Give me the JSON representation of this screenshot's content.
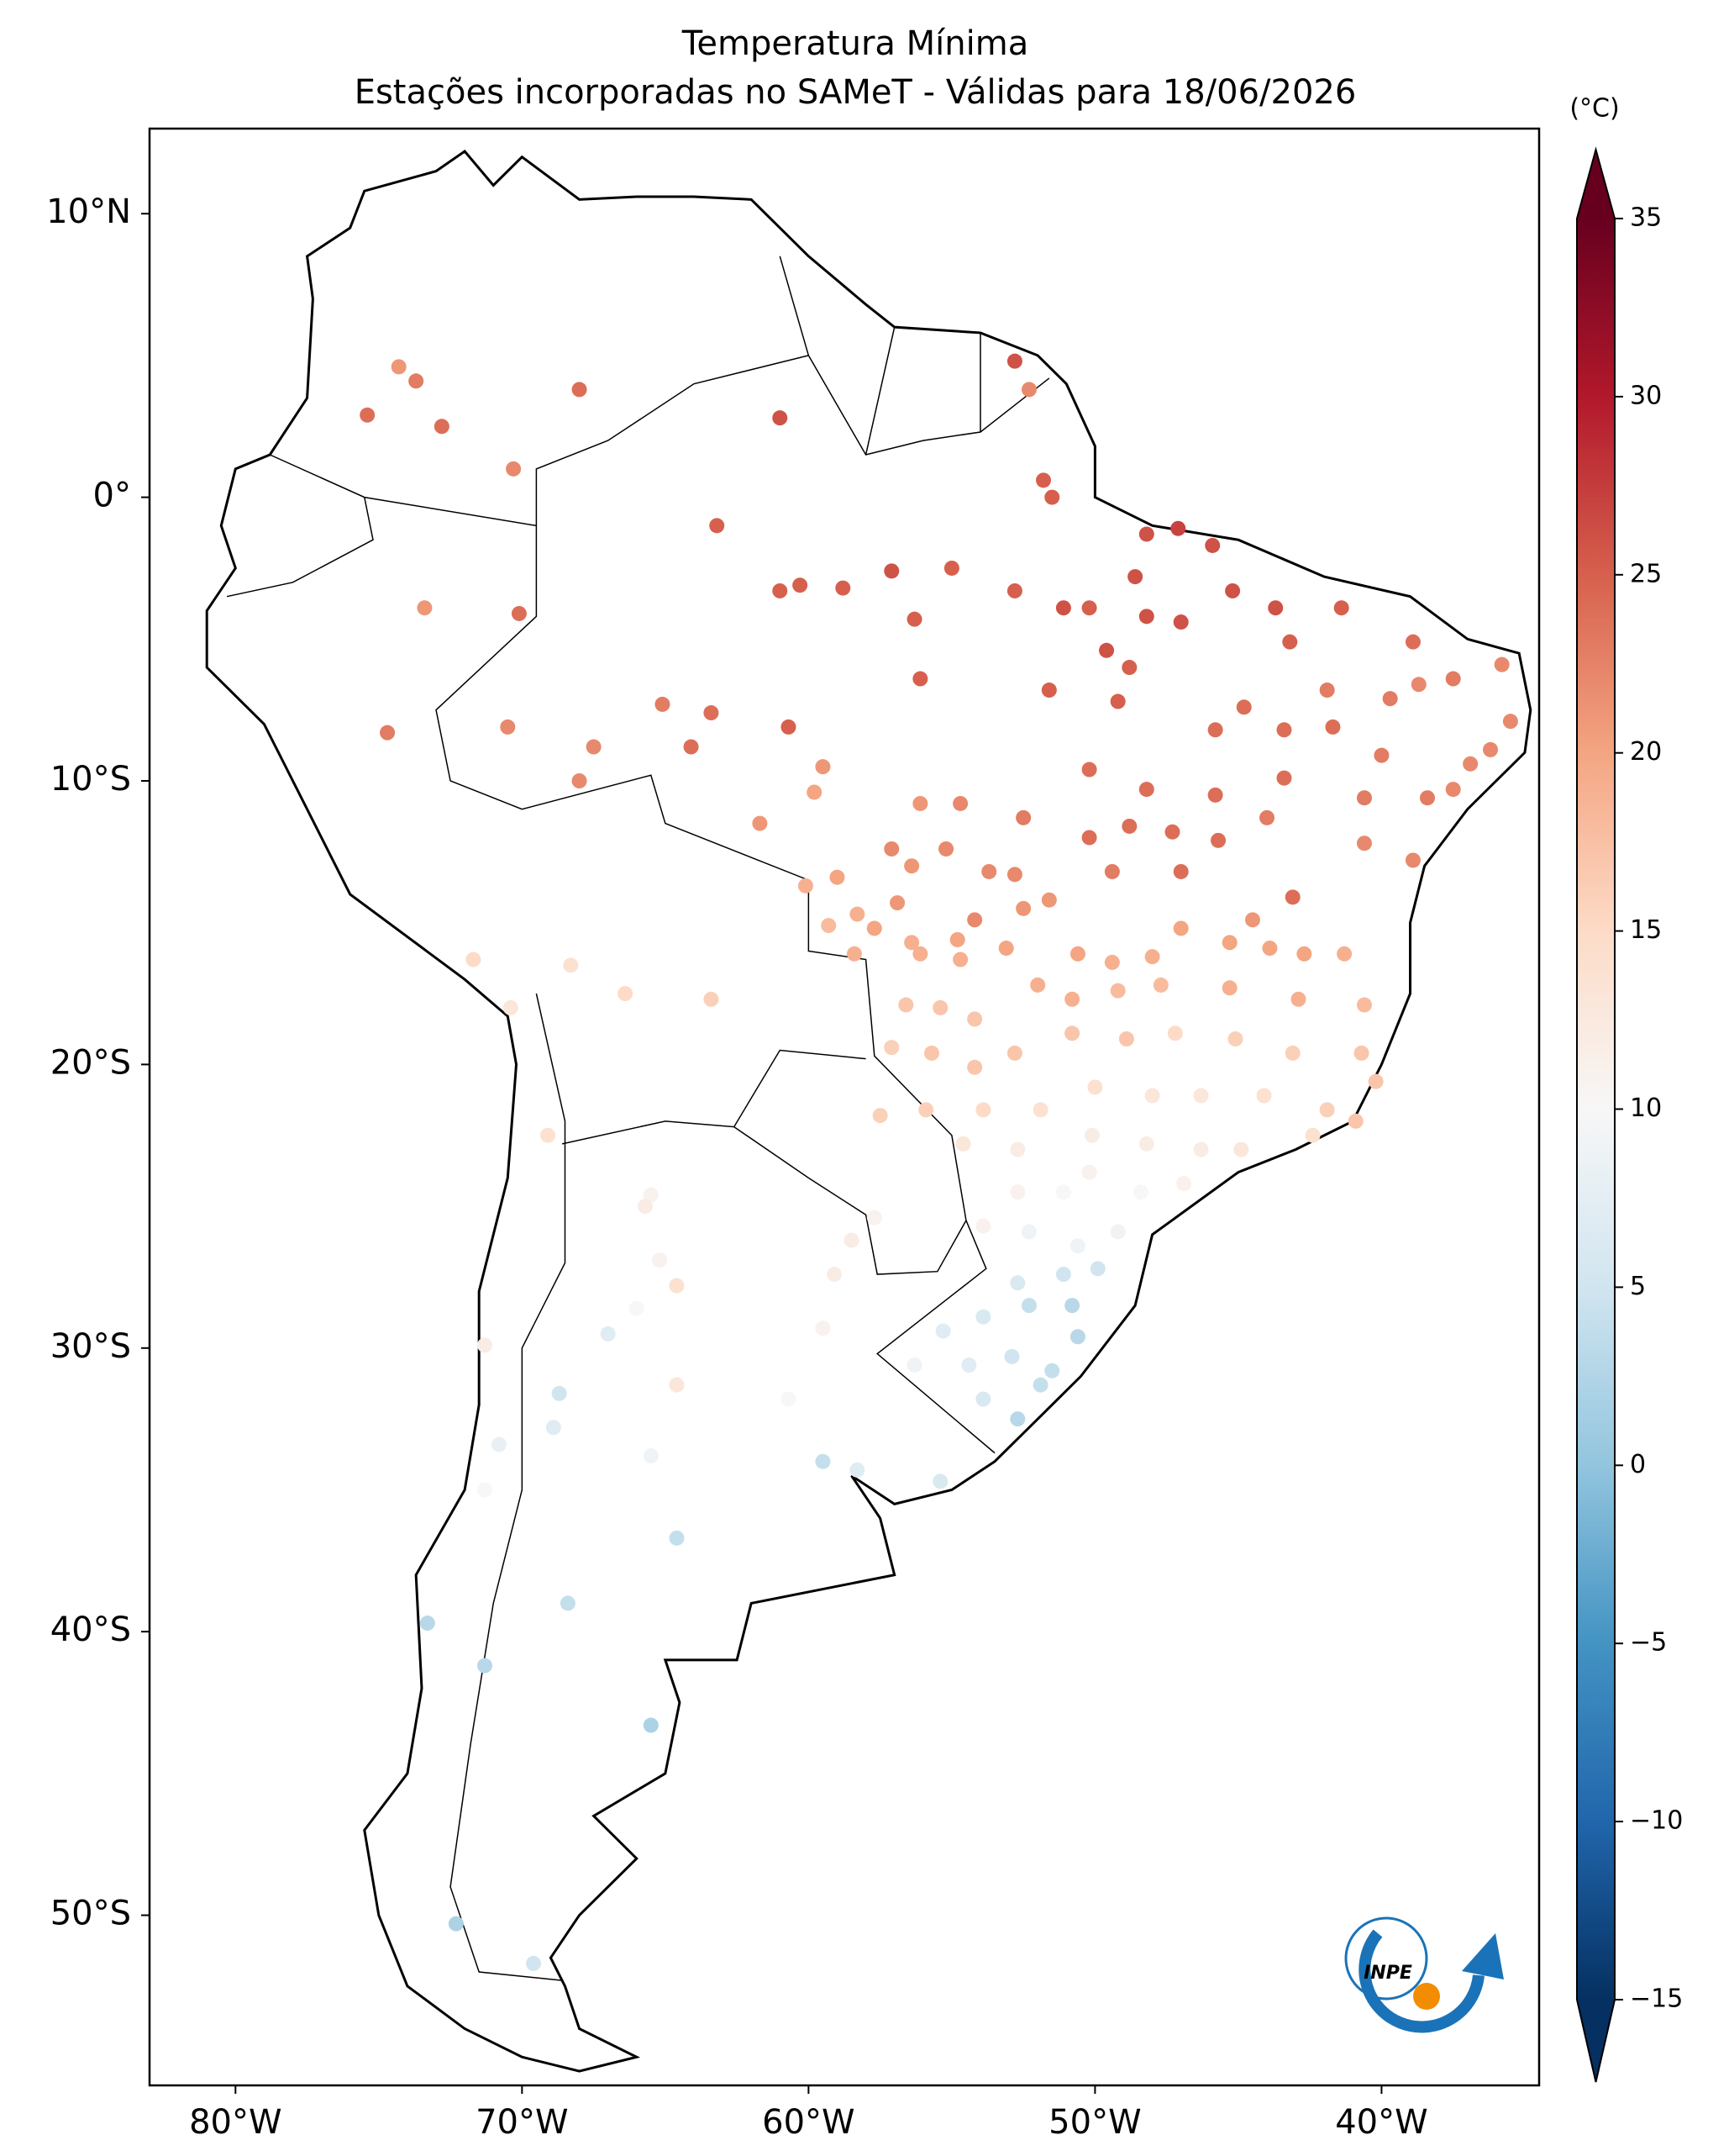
{
  "chart_data": {
    "type": "map",
    "title": "Temperatura Mínima",
    "subtitle": "Estações incorporadas no SAMeT - Válidas para 18/06/2026",
    "logo": "INPE",
    "xlim": [
      -83,
      -34.5
    ],
    "ylim": [
      -56,
      13
    ],
    "xticks": [
      {
        "value": -80,
        "label": "80°W"
      },
      {
        "value": -70,
        "label": "70°W"
      },
      {
        "value": -60,
        "label": "60°W"
      },
      {
        "value": -50,
        "label": "50°W"
      },
      {
        "value": -40,
        "label": "40°W"
      }
    ],
    "yticks": [
      {
        "value": 10,
        "label": "10°N"
      },
      {
        "value": 0,
        "label": "0°"
      },
      {
        "value": -10,
        "label": "10°S"
      },
      {
        "value": -20,
        "label": "20°S"
      },
      {
        "value": -30,
        "label": "30°S"
      },
      {
        "value": -40,
        "label": "40°S"
      },
      {
        "value": -50,
        "label": "50°S"
      }
    ],
    "colorbar": {
      "label": "(°C)",
      "lim": [
        -15,
        35
      ],
      "extend": "both",
      "ticks": [
        {
          "value": -15,
          "label": "−15"
        },
        {
          "value": -10,
          "label": "−10"
        },
        {
          "value": -5,
          "label": "−5"
        },
        0,
        5,
        10,
        15,
        20,
        25,
        30,
        35
      ]
    },
    "stations": {
      "lon": [
        -75.4,
        -74.3,
        -73.7,
        -72.8,
        -68.0,
        -70.3,
        -61.0,
        -52.8,
        -52.3,
        -51.8,
        -51.5,
        -63.2,
        -60.3,
        -58.8,
        -61.0,
        -57.1,
        -55.0,
        -52.8,
        -56.3,
        -56.1,
        -73.4,
        -70.1,
        -65.1,
        -63.4,
        -60.7,
        -70.5,
        -74.7,
        -67.5,
        -64.1,
        -68.0,
        -51.6,
        -51.1,
        -50.2,
        -49.6,
        -48.6,
        -48.2,
        -47.1,
        -45.9,
        -45.2,
        -43.7,
        -47.0,
        -48.2,
        -43.2,
        -41.4,
        -38.9,
        -37.5,
        -35.8,
        -35.5,
        -36.2,
        -36.9,
        -38.7,
        -39.7,
        -41.9,
        -44.8,
        -45.8,
        -43.4,
        -41.7,
        -40.0,
        -37.5,
        -38.4,
        -40.6,
        -43.4,
        -45.8,
        -48.2,
        -50.2,
        -49.2,
        -48.8,
        -50.2,
        -48.8,
        -47.3,
        -45.7,
        -44.0,
        -40.6,
        -38.9,
        -43.1,
        -47.0,
        -49.4,
        -52.5,
        -56.1,
        -54.7,
        -59.5,
        -59.8,
        -61.7,
        -60.1,
        -59.0,
        -57.1,
        -56.4,
        -55.2,
        -53.7,
        -52.8,
        -58.3,
        -56.9,
        -54.2,
        -52.5,
        -51.6,
        -59.3,
        -57.7,
        -56.4,
        -54.8,
        -58.4,
        -56.1,
        -54.7,
        -53.1,
        -50.6,
        -49.4,
        -48.0,
        -47.0,
        -45.3,
        -43.9,
        -42.7,
        -41.3,
        -44.5,
        -52.0,
        -50.8,
        -49.2,
        -47.7,
        -45.3,
        -42.9,
        -40.6,
        -56.6,
        -55.4,
        -54.2,
        -57.1,
        -55.7,
        -54.2,
        -52.8,
        -50.8,
        -48.9,
        -47.2,
        -45.1,
        -43.1,
        -40.7,
        -40.2,
        -41.9,
        -40.9,
        -44.1,
        -46.3,
        -48.0,
        -50.0,
        -51.9,
        -53.9,
        -55.9,
        -57.5,
        -54.6,
        -52.7,
        -50.1,
        -48.2,
        -46.3,
        -44.9,
        -42.4,
        -52.7,
        -51.1,
        -50.2,
        -48.4,
        -46.9,
        -53.9,
        -52.3,
        -50.6,
        -49.2,
        -52.7,
        -51.1,
        -49.9,
        -52.3,
        -50.8,
        -53.9,
        -55.3,
        -56.3,
        -54.4,
        -52.9,
        -51.5,
        -50.6,
        -53.9,
        -51.9,
        -52.7,
        -59.5,
        -58.3,
        -55.4,
        -59.1,
        -58.5,
        -57.7,
        -64.6,
        -65.2,
        -65.5,
        -65.7,
        -66.0,
        -67.0,
        -59.5,
        -64.6,
        -60.7,
        -68.7,
        -68.9,
        -65.5,
        -70.8,
        -71.3,
        -64.6,
        -68.4,
        -73.3,
        -71.3,
        -65.5,
        -72.3,
        -69.6,
        -71.7,
        -68.3,
        -66.4,
        -63.4,
        -70.4,
        -69.1,
        -71.3
      ],
      "lat": [
        2.9,
        4.6,
        4.1,
        2.5,
        3.8,
        1.0,
        2.8,
        4.8,
        3.8,
        0.6,
        0.0,
        -1.0,
        -3.1,
        -3.2,
        -3.3,
        -2.6,
        -2.5,
        -3.3,
        -4.3,
        -6.4,
        -3.9,
        -4.1,
        -7.3,
        -7.6,
        -8.1,
        -8.1,
        -8.3,
        -8.8,
        -8.8,
        -10.0,
        -6.8,
        -3.9,
        -3.9,
        -5.4,
        -2.8,
        -1.3,
        -1.1,
        -1.7,
        -3.3,
        -3.9,
        -4.4,
        -4.2,
        -5.1,
        -3.9,
        -5.1,
        -6.4,
        -5.9,
        -7.9,
        -8.9,
        -9.4,
        -6.6,
        -7.1,
        -6.8,
        -7.4,
        -8.2,
        -8.2,
        -8.1,
        -9.1,
        -10.3,
        -10.6,
        -10.6,
        -9.9,
        -10.5,
        -10.3,
        -9.6,
        -7.2,
        -6.0,
        -12.0,
        -11.6,
        -11.8,
        -12.1,
        -11.3,
        -12.2,
        -12.8,
        -14.1,
        -13.2,
        -13.2,
        -11.3,
        -10.8,
        -10.8,
        -9.5,
        -10.4,
        -11.5,
        -13.7,
        -13.4,
        -12.4,
        -13.0,
        -12.4,
        -13.2,
        -13.3,
        -14.7,
        -14.3,
        -14.9,
        -14.5,
        -14.2,
        -15.1,
        -15.2,
        -15.7,
        -15.6,
        -16.1,
        -16.1,
        -16.3,
        -15.9,
        -16.1,
        -16.4,
        -16.2,
        -15.2,
        -15.7,
        -15.9,
        -16.1,
        -16.1,
        -14.9,
        -17.2,
        -17.7,
        -17.4,
        -17.2,
        -17.3,
        -17.7,
        -17.9,
        -17.9,
        -18.0,
        -18.4,
        -19.4,
        -19.6,
        -20.1,
        -19.6,
        -18.9,
        -19.1,
        -18.9,
        -19.1,
        -19.6,
        -19.6,
        -20.6,
        -21.6,
        -22.0,
        -21.1,
        -21.1,
        -21.1,
        -20.8,
        -21.6,
        -21.6,
        -21.6,
        -21.8,
        -22.8,
        -23.0,
        -22.5,
        -22.8,
        -23.0,
        -23.0,
        -22.5,
        -24.5,
        -24.5,
        -23.8,
        -24.5,
        -24.2,
        -25.7,
        -25.9,
        -26.4,
        -25.9,
        -27.7,
        -27.4,
        -27.2,
        -28.5,
        -28.5,
        -28.9,
        -29.4,
        -30.6,
        -30.6,
        -30.3,
        -30.8,
        -29.6,
        -31.8,
        -31.3,
        -32.5,
        -34.0,
        -34.3,
        -34.7,
        -27.4,
        -26.2,
        -25.4,
        -27.8,
        -26.9,
        -24.6,
        -25.0,
        -28.6,
        -29.5,
        -29.3,
        -31.3,
        -31.8,
        -31.6,
        -32.8,
        -33.8,
        -33.4,
        -35.0,
        -36.7,
        -39.0,
        -39.7,
        -41.2,
        -43.3,
        -50.3,
        -51.7,
        -16.3,
        -16.5,
        -17.5,
        -17.7,
        -18.0,
        -22.5,
        -29.9
      ],
      "values": [
        24,
        21,
        23,
        24,
        24,
        22,
        26,
        26,
        22,
        25,
        25,
        25,
        25,
        25,
        25,
        26,
        25,
        25,
        25,
        25,
        21,
        24,
        23,
        24,
        25,
        22,
        23,
        22,
        24,
        22,
        25,
        26,
        25,
        26,
        26,
        26,
        27,
        26,
        26,
        26,
        26,
        26,
        25,
        25,
        24,
        23,
        22,
        22,
        22,
        22,
        22,
        23,
        23,
        24,
        24,
        24,
        24,
        23,
        22,
        23,
        23,
        24,
        24,
        24,
        24,
        25,
        25,
        24,
        24,
        24,
        24,
        23,
        22,
        22,
        24,
        24,
        23,
        23,
        21,
        22,
        21,
        20,
        21,
        19,
        20,
        22,
        21,
        22,
        22,
        22,
        19,
        21,
        22,
        21,
        21,
        18,
        20,
        19,
        20,
        19,
        19,
        19,
        20,
        20,
        19,
        19,
        20,
        20,
        20,
        20,
        19,
        21,
        19,
        19,
        18,
        18,
        19,
        19,
        18,
        17,
        17,
        17,
        16,
        17,
        17,
        17,
        17,
        17,
        15,
        16,
        16,
        17,
        17,
        16,
        17,
        14,
        13,
        13,
        14,
        14,
        15,
        16,
        16,
        13,
        12,
        12,
        12,
        12,
        13,
        14,
        11,
        10,
        11,
        10,
        11,
        11,
        9,
        9,
        9,
        6,
        5,
        5,
        4,
        3,
        6,
        7,
        9,
        7,
        5,
        4,
        3,
        6,
        4,
        3,
        4,
        7,
        6,
        12,
        12,
        11,
        14,
        11,
        11,
        12,
        10,
        7,
        11,
        13,
        10,
        5,
        7,
        9,
        8,
        10,
        4,
        4,
        3,
        3,
        2,
        2,
        5,
        15,
        14,
        15,
        16,
        13,
        14,
        12
      ]
    }
  }
}
